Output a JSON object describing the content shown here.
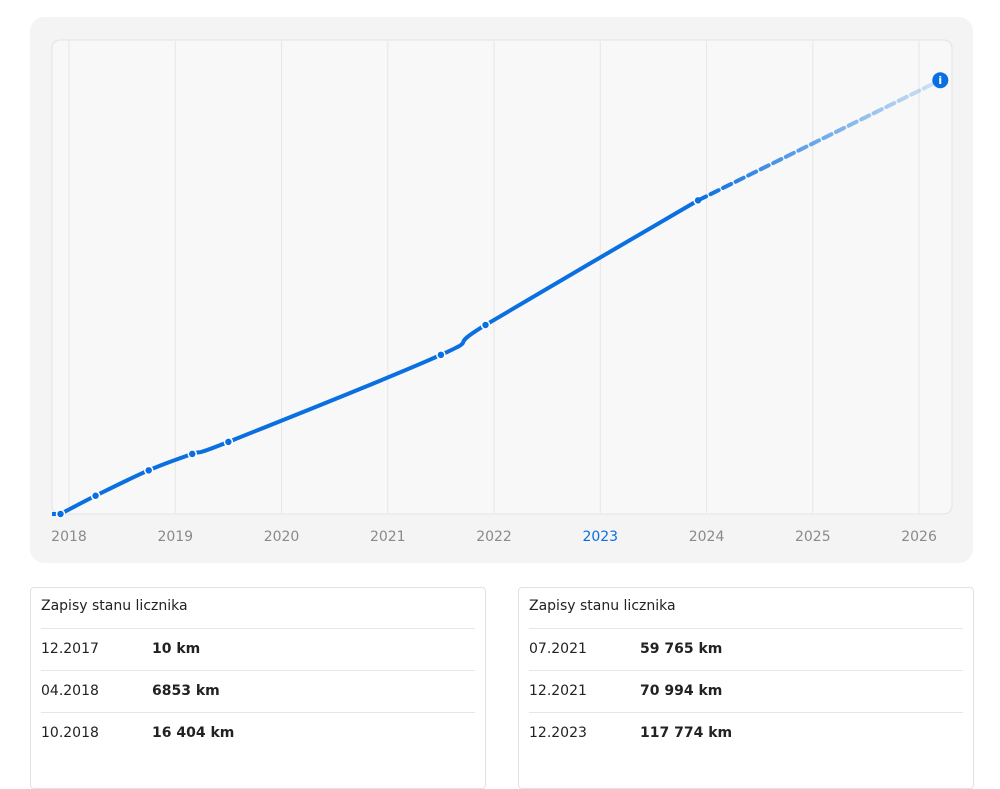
{
  "chart_data": {
    "type": "line",
    "xlim": [
      2017.84,
      2026.31
    ],
    "ylim": [
      0,
      178000
    ],
    "xticks": [
      2018,
      2019,
      2020,
      2021,
      2022,
      2023,
      2024,
      2025,
      2026
    ],
    "highlighted_xtick": 2023,
    "grid": true,
    "series": [
      {
        "color": "#0a6fe0",
        "x": [
          2017.92,
          2018.25,
          2018.75,
          2019.16,
          2019.5,
          2021.5,
          2021.92,
          2023.92
        ],
        "values": [
          10,
          6853,
          16404,
          22570,
          27090,
          59765,
          70994,
          117774
        ]
      },
      {
        "color": "#0a6fe0",
        "dashed": true,
        "x": [
          2023.92,
          2026.2
        ],
        "values": [
          117774,
          162900
        ]
      }
    ]
  },
  "tables": [
    {
      "title": "Zapisy stanu licznika",
      "rows": [
        [
          "12.2017",
          "10 km"
        ],
        [
          "04.2018",
          "6853 km"
        ],
        [
          "10.2018",
          "16 404 km"
        ]
      ]
    },
    {
      "title": "Zapisy stanu licznika",
      "rows": [
        [
          "07.2021",
          "59 765 km"
        ],
        [
          "12.2021",
          "70 994 km"
        ],
        [
          "12.2023",
          "117 774 km"
        ]
      ]
    }
  ]
}
